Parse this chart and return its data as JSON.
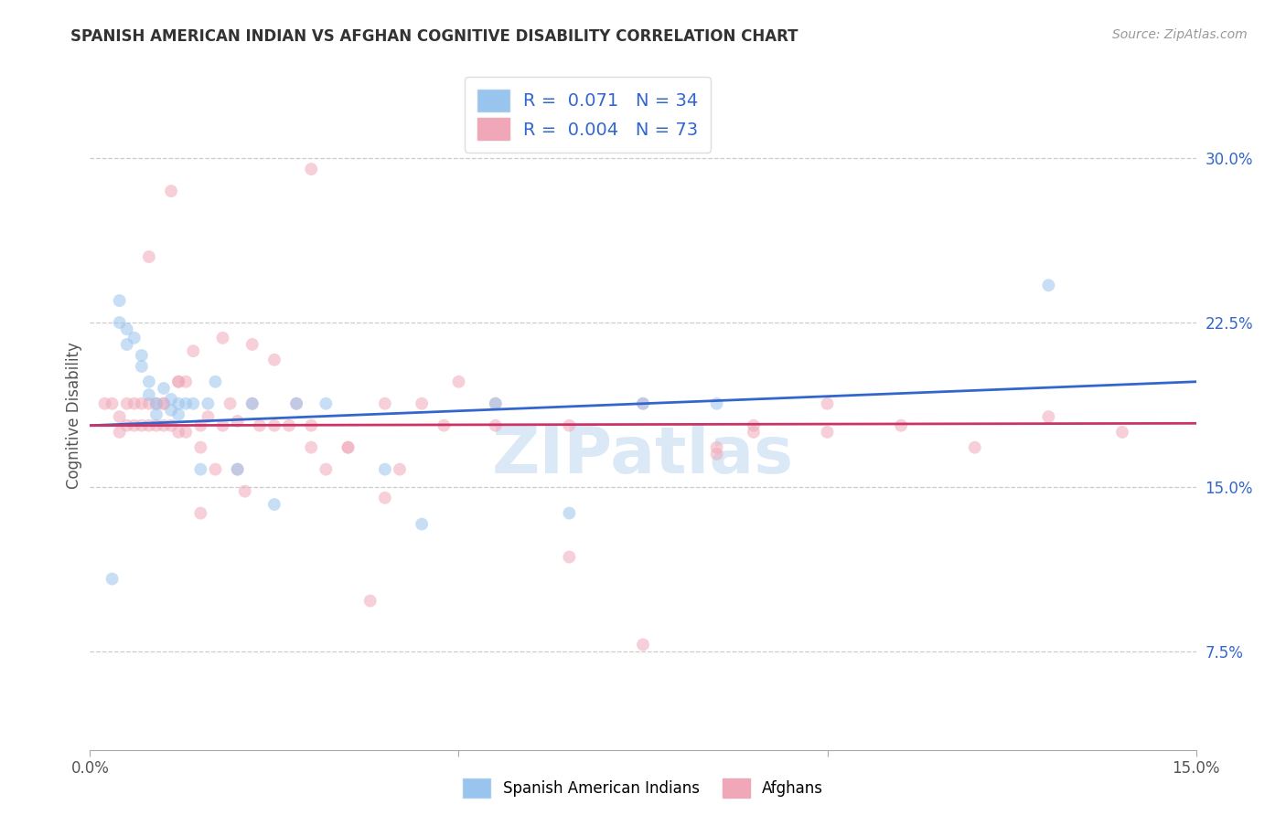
{
  "title": "SPANISH AMERICAN INDIAN VS AFGHAN COGNITIVE DISABILITY CORRELATION CHART",
  "source": "Source: ZipAtlas.com",
  "ylabel": "Cognitive Disability",
  "right_yticks": [
    "30.0%",
    "22.5%",
    "15.0%",
    "7.5%"
  ],
  "right_ytick_vals": [
    0.3,
    0.225,
    0.15,
    0.075
  ],
  "x_min": 0.0,
  "x_max": 0.15,
  "y_min": 0.03,
  "y_max": 0.335,
  "watermark": "ZIPatlas",
  "blue_scatter_x": [
    0.004,
    0.004,
    0.005,
    0.005,
    0.006,
    0.007,
    0.007,
    0.008,
    0.008,
    0.009,
    0.009,
    0.01,
    0.011,
    0.011,
    0.012,
    0.012,
    0.013,
    0.014,
    0.015,
    0.016,
    0.017,
    0.02,
    0.022,
    0.025,
    0.028,
    0.032,
    0.04,
    0.045,
    0.055,
    0.065,
    0.075,
    0.085,
    0.13,
    0.003
  ],
  "blue_scatter_y": [
    0.235,
    0.225,
    0.222,
    0.215,
    0.218,
    0.21,
    0.205,
    0.198,
    0.192,
    0.188,
    0.183,
    0.195,
    0.19,
    0.185,
    0.188,
    0.183,
    0.188,
    0.188,
    0.158,
    0.188,
    0.198,
    0.158,
    0.188,
    0.142,
    0.188,
    0.188,
    0.158,
    0.133,
    0.188,
    0.138,
    0.188,
    0.188,
    0.242,
    0.108
  ],
  "pink_scatter_x": [
    0.002,
    0.003,
    0.004,
    0.004,
    0.005,
    0.005,
    0.006,
    0.006,
    0.007,
    0.007,
    0.008,
    0.008,
    0.009,
    0.009,
    0.01,
    0.01,
    0.011,
    0.011,
    0.012,
    0.012,
    0.013,
    0.013,
    0.014,
    0.015,
    0.015,
    0.016,
    0.017,
    0.018,
    0.019,
    0.02,
    0.021,
    0.022,
    0.023,
    0.025,
    0.027,
    0.028,
    0.03,
    0.032,
    0.035,
    0.038,
    0.04,
    0.042,
    0.045,
    0.048,
    0.05,
    0.055,
    0.065,
    0.075,
    0.085,
    0.09,
    0.1,
    0.11,
    0.13,
    0.015,
    0.02,
    0.025,
    0.03,
    0.035,
    0.018,
    0.012,
    0.01,
    0.008,
    0.022,
    0.03,
    0.04,
    0.055,
    0.065,
    0.075,
    0.085,
    0.09,
    0.1,
    0.12,
    0.14
  ],
  "pink_scatter_y": [
    0.188,
    0.188,
    0.182,
    0.175,
    0.188,
    0.178,
    0.188,
    0.178,
    0.188,
    0.178,
    0.188,
    0.178,
    0.188,
    0.178,
    0.188,
    0.178,
    0.285,
    0.178,
    0.198,
    0.175,
    0.198,
    0.175,
    0.212,
    0.178,
    0.168,
    0.182,
    0.158,
    0.178,
    0.188,
    0.158,
    0.148,
    0.188,
    0.178,
    0.178,
    0.178,
    0.188,
    0.168,
    0.158,
    0.168,
    0.098,
    0.188,
    0.158,
    0.188,
    0.178,
    0.198,
    0.188,
    0.178,
    0.188,
    0.168,
    0.178,
    0.188,
    0.178,
    0.182,
    0.138,
    0.18,
    0.208,
    0.178,
    0.168,
    0.218,
    0.198,
    0.188,
    0.255,
    0.215,
    0.295,
    0.145,
    0.178,
    0.118,
    0.078,
    0.165,
    0.175,
    0.175,
    0.168,
    0.175
  ],
  "blue_line_x": [
    0.0,
    0.15
  ],
  "blue_line_y": [
    0.178,
    0.198
  ],
  "pink_line_x": [
    0.0,
    0.15
  ],
  "pink_line_y": [
    0.178,
    0.179
  ],
  "blue_color": "#99c4ed",
  "pink_color": "#f0a8b8",
  "blue_line_color": "#3366cc",
  "pink_line_color": "#cc3366",
  "marker_size": 100,
  "marker_alpha": 0.55,
  "legend_blue_label": "R =  0.071   N = 34",
  "legend_pink_label": "R =  0.004   N = 73",
  "bottom_legend_blue": "Spanish American Indians",
  "bottom_legend_pink": "Afghans"
}
